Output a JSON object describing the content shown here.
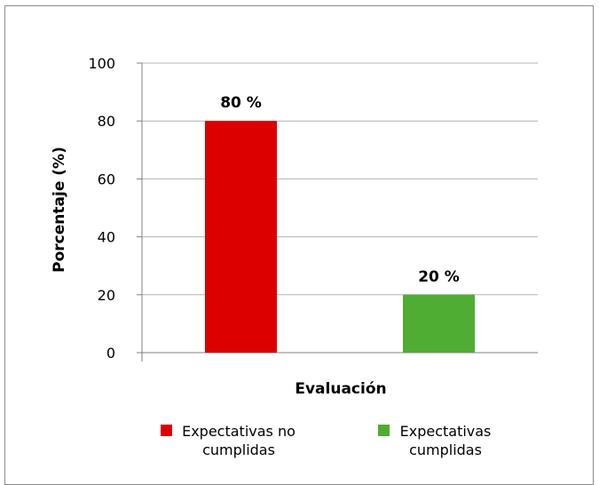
{
  "chart_data": {
    "type": "bar",
    "categories": [
      "Expectativas no cumplidas",
      "Expectativas cumplidas"
    ],
    "values": [
      80,
      20
    ],
    "data_labels": [
      "80 %",
      "20 %"
    ],
    "colors": [
      "#dd0000",
      "#4fad33"
    ],
    "xlabel": "Evaluación",
    "ylabel": "Porcentaje (%)",
    "ylim": [
      0,
      100
    ],
    "yticks": [
      0,
      20,
      40,
      60,
      80,
      100
    ],
    "grid": true,
    "legend": {
      "placement": "bottom",
      "entries": [
        {
          "lines": [
            "Expectativas no",
            "cumplidas"
          ],
          "color": "#dd0000"
        },
        {
          "lines": [
            "Expectativas",
            "cumplidas"
          ],
          "color": "#4fad33"
        }
      ]
    }
  }
}
